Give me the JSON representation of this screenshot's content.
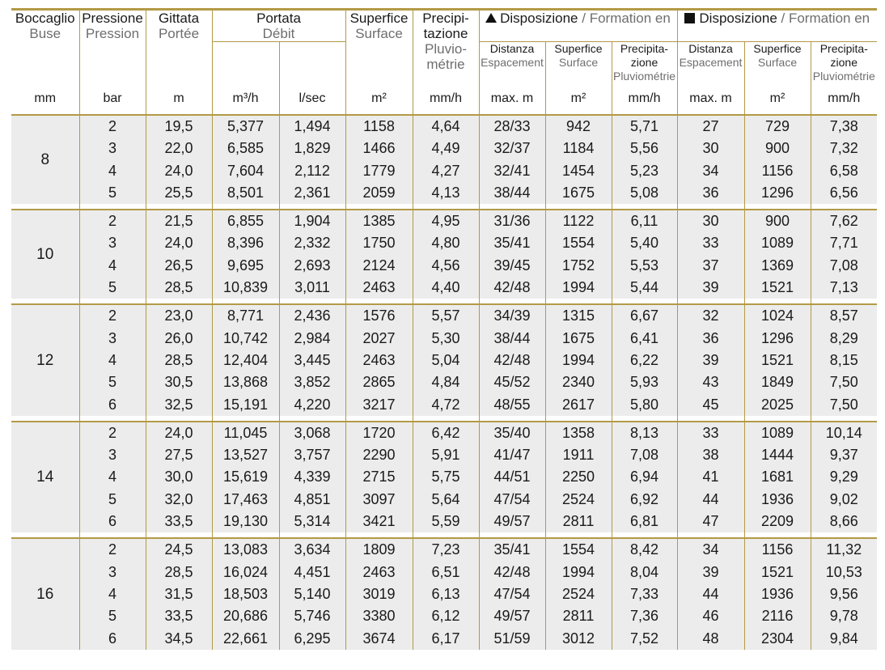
{
  "headers": {
    "nozzle": {
      "it": "Boccaglio",
      "fr": "Buse"
    },
    "pressure": {
      "it": "Pressione",
      "fr": "Pression"
    },
    "range": {
      "it": "Gittata",
      "fr": "Portée"
    },
    "flow": {
      "it": "Portata",
      "fr": "Débit"
    },
    "surface": {
      "it": "Superfice",
      "fr": "Surface"
    },
    "precip": {
      "it1": "Precipi-",
      "it2": "tazione",
      "fr1": "Pluvio-",
      "fr2": "métrie"
    },
    "triangle_group": {
      "symbol": "triangle-icon",
      "it": "Disposizione",
      "sep": " / ",
      "fr": "Formation en"
    },
    "square_group": {
      "symbol": "square-icon",
      "it": "Disposizione",
      "sep": " / ",
      "fr": "Formation en"
    },
    "sub": {
      "spacing_it": "Distanza",
      "spacing_fr": "Espacement",
      "surface_it": "Superfice",
      "surface_fr": "Surface",
      "precip_it1": "Precipita-",
      "precip_it2": "zione",
      "precip_fr": "Pluviométrie"
    }
  },
  "units": [
    "mm",
    "bar",
    "m",
    "m³/h",
    "l/sec",
    "m²",
    "mm/h",
    "max. m",
    "m²",
    "mm/h",
    "max. m",
    "m²",
    "mm/h"
  ],
  "groups": [
    {
      "nozzle": "8",
      "rows": [
        [
          "2",
          "19,5",
          "5,377",
          "1,494",
          "1158",
          "4,64",
          "28/33",
          "942",
          "5,71",
          "27",
          "729",
          "7,38"
        ],
        [
          "3",
          "22,0",
          "6,585",
          "1,829",
          "1466",
          "4,49",
          "32/37",
          "1184",
          "5,56",
          "30",
          "900",
          "7,32"
        ],
        [
          "4",
          "24,0",
          "7,604",
          "2,112",
          "1779",
          "4,27",
          "32/41",
          "1454",
          "5,23",
          "34",
          "1156",
          "6,58"
        ],
        [
          "5",
          "25,5",
          "8,501",
          "2,361",
          "2059",
          "4,13",
          "38/44",
          "1675",
          "5,08",
          "36",
          "1296",
          "6,56"
        ]
      ]
    },
    {
      "nozzle": "10",
      "rows": [
        [
          "2",
          "21,5",
          "6,855",
          "1,904",
          "1385",
          "4,95",
          "31/36",
          "1122",
          "6,11",
          "30",
          "900",
          "7,62"
        ],
        [
          "3",
          "24,0",
          "8,396",
          "2,332",
          "1750",
          "4,80",
          "35/41",
          "1554",
          "5,40",
          "33",
          "1089",
          "7,71"
        ],
        [
          "4",
          "26,5",
          "9,695",
          "2,693",
          "2124",
          "4,56",
          "39/45",
          "1752",
          "5,53",
          "37",
          "1369",
          "7,08"
        ],
        [
          "5",
          "28,5",
          "10,839",
          "3,011",
          "2463",
          "4,40",
          "42/48",
          "1994",
          "5,44",
          "39",
          "1521",
          "7,13"
        ]
      ]
    },
    {
      "nozzle": "12",
      "rows": [
        [
          "2",
          "23,0",
          "8,771",
          "2,436",
          "1576",
          "5,57",
          "34/39",
          "1315",
          "6,67",
          "32",
          "1024",
          "8,57"
        ],
        [
          "3",
          "26,0",
          "10,742",
          "2,984",
          "2027",
          "5,30",
          "38/44",
          "1675",
          "6,41",
          "36",
          "1296",
          "8,29"
        ],
        [
          "4",
          "28,5",
          "12,404",
          "3,445",
          "2463",
          "5,04",
          "42/48",
          "1994",
          "6,22",
          "39",
          "1521",
          "8,15"
        ],
        [
          "5",
          "30,5",
          "13,868",
          "3,852",
          "2865",
          "4,84",
          "45/52",
          "2340",
          "5,93",
          "43",
          "1849",
          "7,50"
        ],
        [
          "6",
          "32,5",
          "15,191",
          "4,220",
          "3217",
          "4,72",
          "48/55",
          "2617",
          "5,80",
          "45",
          "2025",
          "7,50"
        ]
      ]
    },
    {
      "nozzle": "14",
      "rows": [
        [
          "2",
          "24,0",
          "11,045",
          "3,068",
          "1720",
          "6,42",
          "35/40",
          "1358",
          "8,13",
          "33",
          "1089",
          "10,14"
        ],
        [
          "3",
          "27,5",
          "13,527",
          "3,757",
          "2290",
          "5,91",
          "41/47",
          "1911",
          "7,08",
          "38",
          "1444",
          "9,37"
        ],
        [
          "4",
          "30,0",
          "15,619",
          "4,339",
          "2715",
          "5,75",
          "44/51",
          "2250",
          "6,94",
          "41",
          "1681",
          "9,29"
        ],
        [
          "5",
          "32,0",
          "17,463",
          "4,851",
          "3097",
          "5,64",
          "47/54",
          "2524",
          "6,92",
          "44",
          "1936",
          "9,02"
        ],
        [
          "6",
          "33,5",
          "19,130",
          "5,314",
          "3421",
          "5,59",
          "49/57",
          "2811",
          "6,81",
          "47",
          "2209",
          "8,66"
        ]
      ]
    },
    {
      "nozzle": "16",
      "rows": [
        [
          "2",
          "24,5",
          "13,083",
          "3,634",
          "1809",
          "7,23",
          "35/41",
          "1554",
          "8,42",
          "34",
          "1156",
          "11,32"
        ],
        [
          "3",
          "28,5",
          "16,024",
          "4,451",
          "2463",
          "6,51",
          "42/48",
          "1994",
          "8,04",
          "39",
          "1521",
          "10,53"
        ],
        [
          "4",
          "31,5",
          "18,503",
          "5,140",
          "3019",
          "6,13",
          "47/54",
          "2524",
          "7,33",
          "44",
          "1936",
          "9,56"
        ],
        [
          "5",
          "33,5",
          "20,686",
          "5,746",
          "3380",
          "6,12",
          "49/57",
          "2811",
          "7,36",
          "46",
          "2116",
          "9,78"
        ],
        [
          "6",
          "34,5",
          "22,661",
          "6,295",
          "3674",
          "6,17",
          "51/59",
          "3012",
          "7,52",
          "48",
          "2304",
          "9,84"
        ]
      ]
    }
  ]
}
